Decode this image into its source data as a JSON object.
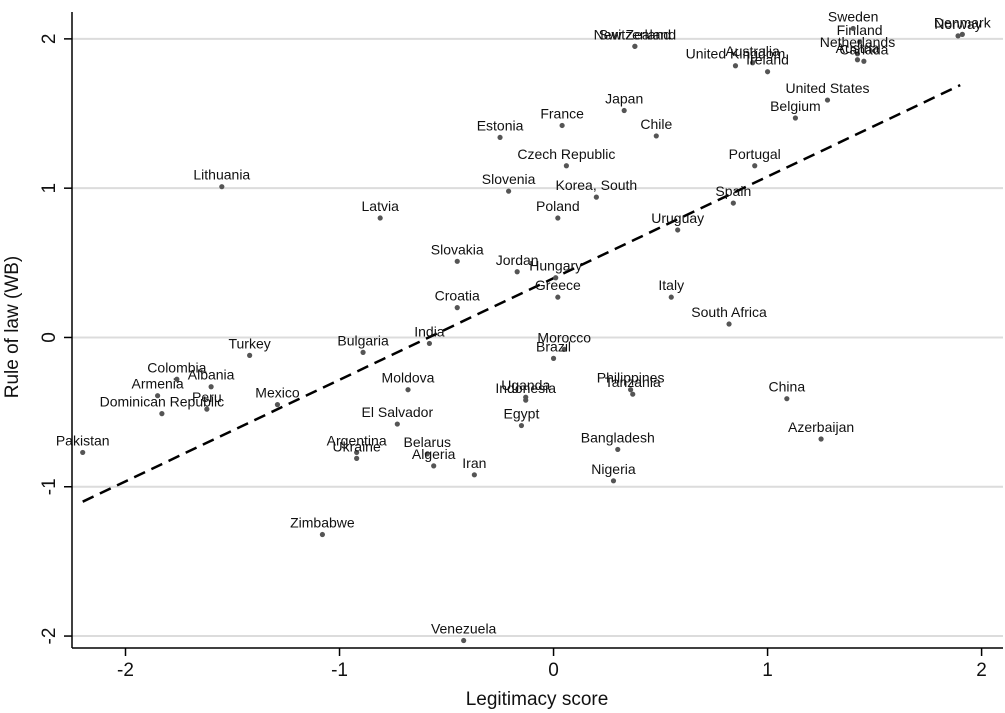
{
  "chart_data": {
    "type": "scatter",
    "xlabel": "Legitimacy score",
    "ylabel": "Rule of law (WB)",
    "xlim": [
      -2.25,
      2.1
    ],
    "ylim": [
      -2.08,
      2.18
    ],
    "xticks": [
      -2,
      -1,
      0,
      1,
      2
    ],
    "yticks": [
      -2,
      -1,
      0,
      1,
      2
    ],
    "xtick_labels": [
      "-2",
      "-1",
      "0",
      "1",
      "2"
    ],
    "ytick_labels": [
      "-2",
      "-1",
      "0",
      "1",
      "2"
    ],
    "grid": "horizontal",
    "fit_line": {
      "x": [
        -2.2,
        1.9
      ],
      "y": [
        -1.1,
        1.69
      ],
      "style": "dashed"
    },
    "points": [
      {
        "label": "Pakistan",
        "x": -2.2,
        "y": -0.77
      },
      {
        "label": "Colombia",
        "x": -1.76,
        "y": -0.28
      },
      {
        "label": "Armenia",
        "x": -1.85,
        "y": -0.39
      },
      {
        "label": "Dominican Republic",
        "x": -1.83,
        "y": -0.51
      },
      {
        "label": "Peru",
        "x": -1.62,
        "y": -0.48
      },
      {
        "label": "Albania",
        "x": -1.6,
        "y": -0.33
      },
      {
        "label": "Turkey",
        "x": -1.42,
        "y": -0.12
      },
      {
        "label": "Mexico",
        "x": -1.29,
        "y": -0.45
      },
      {
        "label": "Lithuania",
        "x": -1.55,
        "y": 1.01
      },
      {
        "label": "Zimbabwe",
        "x": -1.08,
        "y": -1.32
      },
      {
        "label": "Argentina",
        "x": -0.92,
        "y": -0.77
      },
      {
        "label": "Ukraine",
        "x": -0.92,
        "y": -0.81
      },
      {
        "label": "Latvia",
        "x": -0.81,
        "y": 0.8
      },
      {
        "label": "Bulgaria",
        "x": -0.89,
        "y": -0.1
      },
      {
        "label": "El Salvador",
        "x": -0.73,
        "y": -0.58
      },
      {
        "label": "Moldova",
        "x": -0.68,
        "y": -0.35
      },
      {
        "label": "Belarus",
        "x": -0.59,
        "y": -0.78
      },
      {
        "label": "Algeria",
        "x": -0.56,
        "y": -0.86
      },
      {
        "label": "India",
        "x": -0.58,
        "y": -0.04
      },
      {
        "label": "Slovakia",
        "x": -0.45,
        "y": 0.51
      },
      {
        "label": "Croatia",
        "x": -0.45,
        "y": 0.2
      },
      {
        "label": "Iran",
        "x": -0.37,
        "y": -0.92
      },
      {
        "label": "Venezuela",
        "x": -0.42,
        "y": -2.03
      },
      {
        "label": "Estonia",
        "x": -0.25,
        "y": 1.34
      },
      {
        "label": "Slovenia",
        "x": -0.21,
        "y": 0.98
      },
      {
        "label": "Jordan",
        "x": -0.17,
        "y": 0.44
      },
      {
        "label": "Uganda",
        "x": -0.13,
        "y": -0.4
      },
      {
        "label": "Indonesia",
        "x": -0.13,
        "y": -0.42
      },
      {
        "label": "Egypt",
        "x": -0.15,
        "y": -0.59
      },
      {
        "label": "Hungary",
        "x": 0.01,
        "y": 0.4
      },
      {
        "label": "Greece",
        "x": 0.02,
        "y": 0.27
      },
      {
        "label": "Morocco",
        "x": 0.05,
        "y": -0.08
      },
      {
        "label": "Brazil",
        "x": 0.0,
        "y": -0.14
      },
      {
        "label": "Poland",
        "x": 0.02,
        "y": 0.8
      },
      {
        "label": "France",
        "x": 0.04,
        "y": 1.42
      },
      {
        "label": "Czech Republic",
        "x": 0.06,
        "y": 1.15
      },
      {
        "label": "Korea, South",
        "x": 0.2,
        "y": 0.94
      },
      {
        "label": "New Zealand",
        "x": 0.38,
        "y": 1.95
      },
      {
        "label": "Switzerland",
        "x": 0.38,
        "y": 1.95
      },
      {
        "label": "Japan",
        "x": 0.33,
        "y": 1.52
      },
      {
        "label": "Chile",
        "x": 0.48,
        "y": 1.35
      },
      {
        "label": "Philippines",
        "x": 0.36,
        "y": -0.35
      },
      {
        "label": "Tanzania",
        "x": 0.37,
        "y": -0.38
      },
      {
        "label": "Bangladesh",
        "x": 0.3,
        "y": -0.75
      },
      {
        "label": "Nigeria",
        "x": 0.28,
        "y": -0.96
      },
      {
        "label": "Uruguay",
        "x": 0.58,
        "y": 0.72
      },
      {
        "label": "Italy",
        "x": 0.55,
        "y": 0.27
      },
      {
        "label": "South Africa",
        "x": 0.82,
        "y": 0.09
      },
      {
        "label": "United Kingdom",
        "x": 0.85,
        "y": 1.82
      },
      {
        "label": "Australia",
        "x": 0.93,
        "y": 1.84
      },
      {
        "label": "Ireland",
        "x": 1.0,
        "y": 1.78
      },
      {
        "label": "Portugal",
        "x": 0.94,
        "y": 1.15
      },
      {
        "label": "Spain",
        "x": 0.84,
        "y": 0.9
      },
      {
        "label": "United States",
        "x": 1.28,
        "y": 1.59
      },
      {
        "label": "Belgium",
        "x": 1.13,
        "y": 1.47
      },
      {
        "label": "China",
        "x": 1.09,
        "y": -0.41
      },
      {
        "label": "Azerbaijan",
        "x": 1.25,
        "y": -0.68
      },
      {
        "label": "Finland",
        "x": 1.43,
        "y": 1.98
      },
      {
        "label": "Sweden",
        "x": 1.4,
        "y": 2.07
      },
      {
        "label": "Netherlands",
        "x": 1.42,
        "y": 1.9
      },
      {
        "label": "Austria",
        "x": 1.42,
        "y": 1.86
      },
      {
        "label": "Canada",
        "x": 1.45,
        "y": 1.85
      },
      {
        "label": "Denmark",
        "x": 1.91,
        "y": 2.03
      },
      {
        "label": "Norway",
        "x": 1.89,
        "y": 2.02
      }
    ]
  }
}
